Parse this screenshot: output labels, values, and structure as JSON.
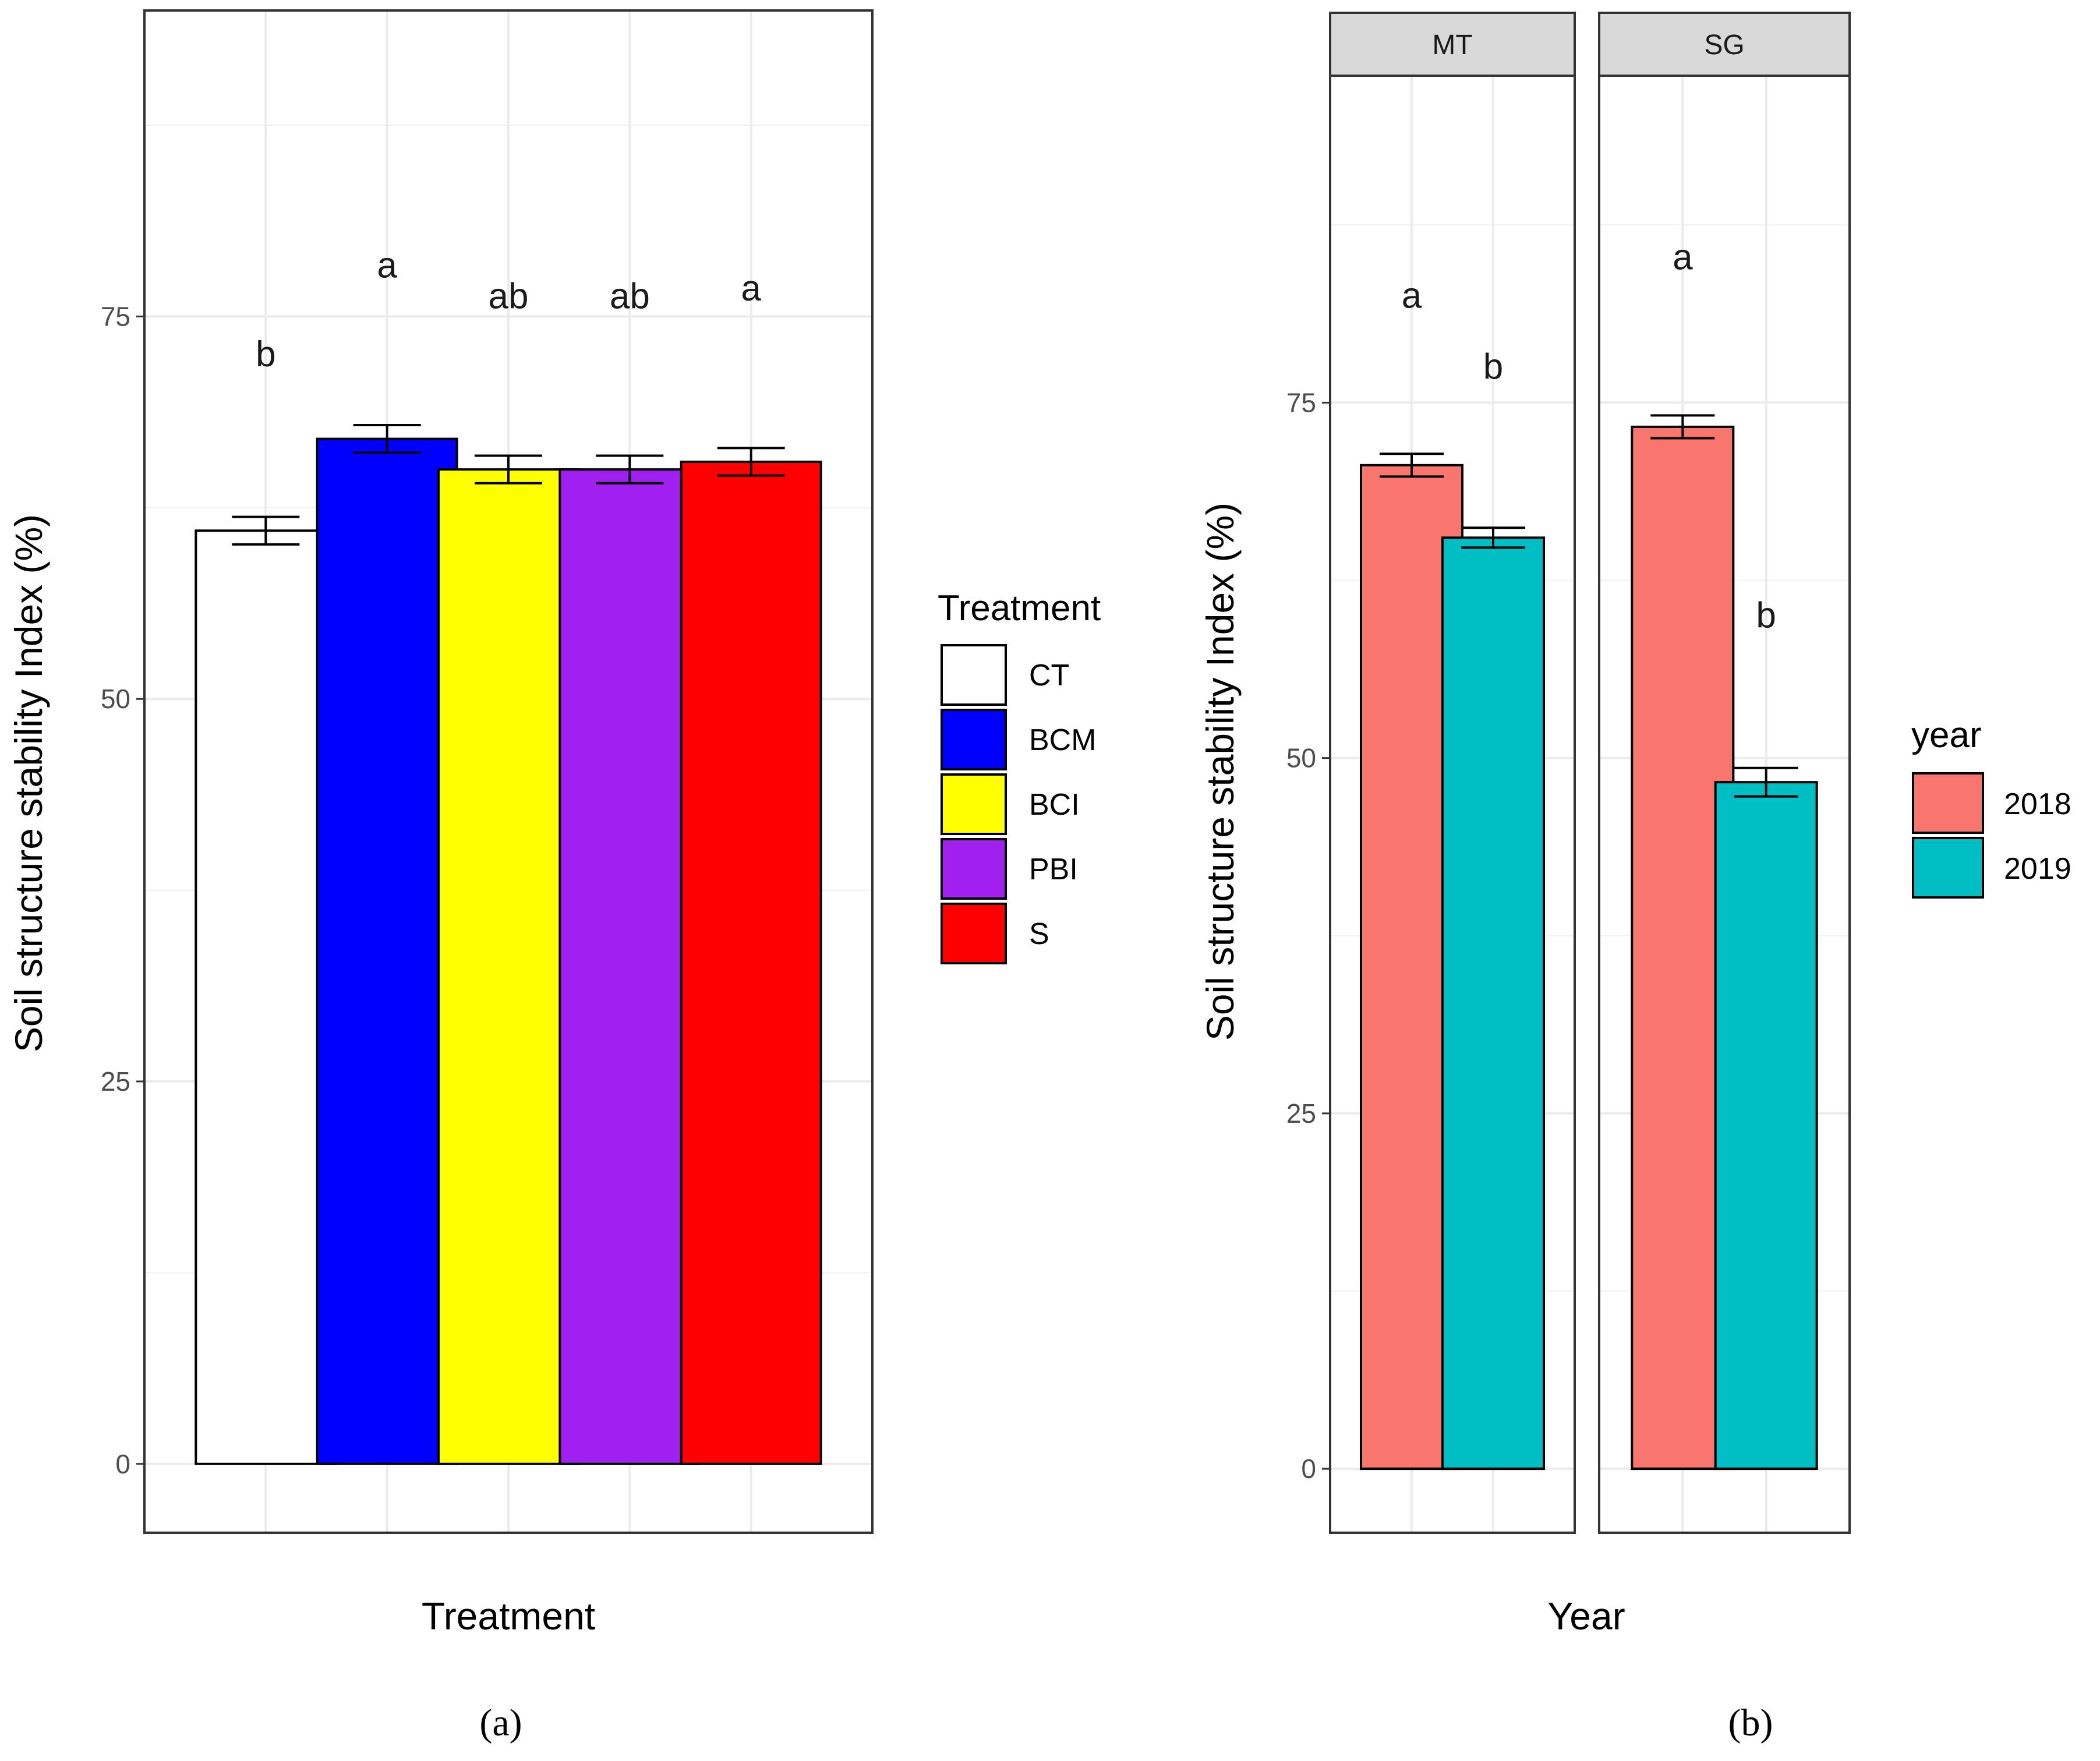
{
  "chart_data": [
    {
      "type": "bar",
      "panel_label": "(a)",
      "xlabel": "Treatment",
      "ylabel": "Soil structure stability Index (%)",
      "ylim": [
        -4.5,
        95
      ],
      "yticks": [
        0,
        25,
        50,
        75
      ],
      "grid": true,
      "categories": [
        "CT",
        "BCM",
        "BCI",
        "PBI",
        "S"
      ],
      "values": [
        61,
        67,
        65,
        65,
        65.5
      ],
      "errors": [
        0.9,
        0.9,
        0.9,
        0.9,
        0.9
      ],
      "letters": [
        "b",
        "a",
        "ab",
        "ab",
        "a"
      ],
      "letter_y": [
        72.5,
        78.3,
        76.3,
        76.3,
        76.8
      ],
      "colors": [
        "#ffffff",
        "#0000ff",
        "#ffff00",
        "#a020f0",
        "#ff0000"
      ],
      "legend": {
        "title": "Treatment",
        "position": "right",
        "entries": [
          "CT",
          "BCM",
          "BCI",
          "PBI",
          "S"
        ]
      }
    },
    {
      "type": "bar",
      "panel_label": "(b)",
      "xlabel": "Year",
      "ylabel": "Soil structure stability Index (%)",
      "ylim": [
        -4.5,
        98
      ],
      "yticks": [
        0,
        25,
        50,
        75
      ],
      "grid": true,
      "facets": [
        "MT",
        "SG"
      ],
      "categories": [
        "2018",
        "2019"
      ],
      "series": [
        {
          "facet": "MT",
          "values": [
            70.6,
            65.5
          ],
          "errors": [
            0.8,
            0.7
          ],
          "letters": [
            "a",
            "b"
          ],
          "letter_y": [
            82.5,
            77.5
          ]
        },
        {
          "facet": "SG",
          "values": [
            73.3,
            48.3
          ],
          "errors": [
            0.8,
            1.0
          ],
          "letters": [
            "a",
            "b"
          ],
          "letter_y": [
            85.2,
            60
          ]
        }
      ],
      "colors": [
        "#f8766d",
        "#00bfc4"
      ],
      "legend": {
        "title": "year",
        "position": "right",
        "entries": [
          "2018",
          "2019"
        ]
      }
    }
  ]
}
